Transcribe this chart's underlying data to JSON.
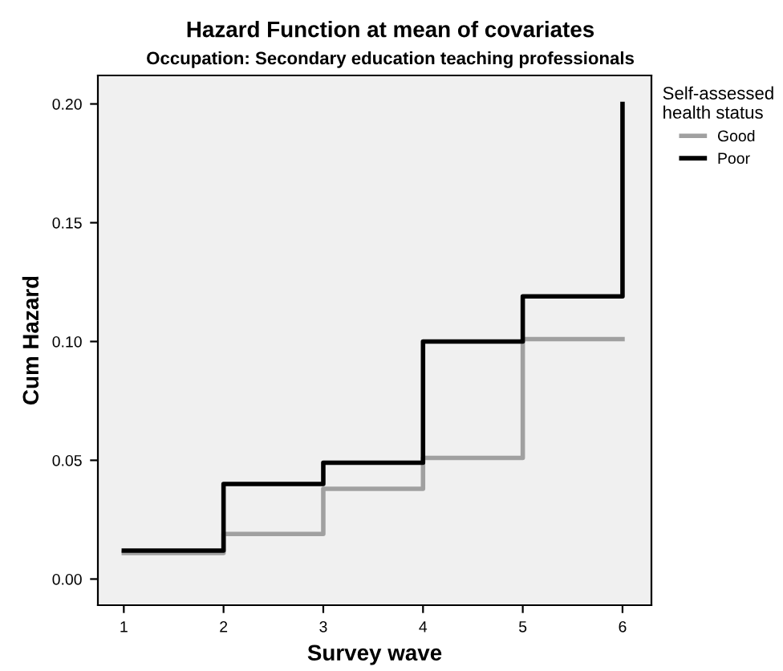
{
  "chart_data": {
    "type": "step",
    "title": "Hazard Function at mean of covariates",
    "subtitle": "Occupation: Secondary education teaching professionals",
    "xlabel": "Survey wave",
    "ylabel": "Cum Hazard",
    "legend_title": "Self-assessed\nhealth status",
    "legend": "top right",
    "grid": false,
    "x": [
      1,
      2,
      3,
      4,
      5,
      6
    ],
    "series": [
      {
        "name": "Good",
        "color": "#a0a0a0",
        "values": [
          0.011,
          0.019,
          0.038,
          0.051,
          0.101,
          0.101
        ]
      },
      {
        "name": "Poor",
        "color": "#000000",
        "values": [
          0.012,
          0.04,
          0.049,
          0.1,
          0.119,
          0.2
        ]
      }
    ],
    "xlim": [
      0.74,
      6.29
    ],
    "xticks": [
      1,
      2,
      3,
      4,
      5,
      6
    ],
    "ylim": [
      -0.011,
      0.212
    ],
    "yticks": [
      {
        "value": 0,
        "label": "0.00"
      },
      {
        "value": 0.05,
        "label": "0.05"
      },
      {
        "value": 0.1,
        "label": "0.10"
      },
      {
        "value": 0.15,
        "label": "0.15"
      },
      {
        "value": 0.2,
        "label": "0.20"
      }
    ]
  }
}
